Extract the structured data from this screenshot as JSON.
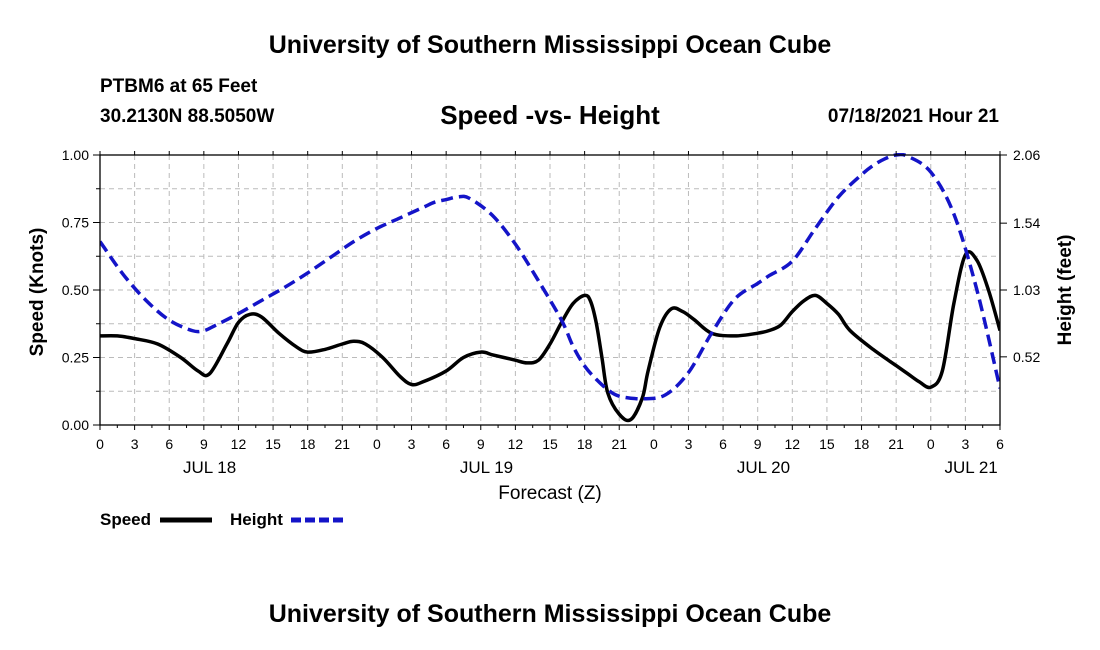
{
  "header": {
    "title": "University of Southern Mississippi Ocean Cube",
    "station": "PTBM6 at 65 Feet",
    "coords": "30.2130N  88.5050W",
    "chart_title": "Speed -vs- Height",
    "timestamp": "07/18/2021 Hour 21"
  },
  "footer": {
    "title": "University of Southern Mississippi Ocean Cube"
  },
  "colors": {
    "speed": "#000000",
    "height": "#1414c8",
    "grid": "#bbbbbb"
  },
  "chart_data": {
    "type": "line",
    "title": "Speed -vs- Height",
    "xlabel": "Forecast (Z)",
    "ylabel": "Speed (Knots)",
    "y2label": "Height (feet)",
    "xlim": [
      0,
      78
    ],
    "ylim": [
      0,
      1.0
    ],
    "y2lim": [
      0.0,
      2.06
    ],
    "xticks": [
      0,
      3,
      6,
      9,
      12,
      15,
      18,
      21,
      24,
      27,
      30,
      33,
      36,
      39,
      42,
      45,
      48,
      51,
      54,
      57,
      60,
      63,
      66,
      69,
      72,
      75,
      78
    ],
    "xtick_labels": [
      "0",
      "3",
      "6",
      "9",
      "12",
      "15",
      "18",
      "21",
      "0",
      "3",
      "6",
      "9",
      "12",
      "15",
      "18",
      "21",
      "0",
      "3",
      "6",
      "9",
      "12",
      "15",
      "18",
      "21",
      "0",
      "3",
      "6"
    ],
    "day_labels": [
      {
        "x": 9.5,
        "label": "JUL 18"
      },
      {
        "x": 33.5,
        "label": "JUL 19"
      },
      {
        "x": 57.5,
        "label": "JUL 20"
      },
      {
        "x": 75.5,
        "label": "JUL 21"
      }
    ],
    "yticks": [
      {
        "value": 0.0,
        "label": "0.00"
      },
      {
        "value": 0.25,
        "label": "0.25"
      },
      {
        "value": 0.5,
        "label": "0.50"
      },
      {
        "value": 0.75,
        "label": "0.75"
      },
      {
        "value": 1.0,
        "label": "1.00"
      }
    ],
    "y2ticks": [
      {
        "value": 0.52,
        "label": "0.52"
      },
      {
        "value": 1.03,
        "label": "1.03"
      },
      {
        "value": 1.54,
        "label": "1.54"
      },
      {
        "value": 2.06,
        "label": "2.06"
      }
    ],
    "grid": true,
    "legend": {
      "position": "bottom-left",
      "speed_label": "Speed",
      "height_label": "Height"
    },
    "series": [
      {
        "name": "Speed",
        "axis": "left",
        "style": "solid",
        "x": [
          0,
          1.5,
          3,
          5,
          7,
          8.5,
          9.5,
          11,
          12,
          13,
          14,
          15.5,
          17,
          18,
          19.5,
          21,
          22,
          23,
          24.5,
          26,
          27,
          28,
          30,
          31.5,
          33,
          34,
          35,
          36,
          37,
          38,
          39,
          40,
          41,
          42,
          42.5,
          43,
          43.5,
          44,
          45,
          46,
          47,
          47.5,
          48.5,
          49.5,
          50.5,
          51.5,
          53,
          55,
          57,
          58,
          59,
          60,
          61,
          62,
          63,
          64,
          65,
          67,
          69,
          70,
          71,
          72,
          73,
          74,
          75,
          76,
          77,
          78
        ],
        "values": [
          0.33,
          0.33,
          0.32,
          0.3,
          0.25,
          0.2,
          0.19,
          0.3,
          0.38,
          0.41,
          0.4,
          0.34,
          0.29,
          0.27,
          0.28,
          0.3,
          0.31,
          0.3,
          0.25,
          0.18,
          0.15,
          0.16,
          0.2,
          0.25,
          0.27,
          0.26,
          0.25,
          0.24,
          0.23,
          0.24,
          0.3,
          0.38,
          0.45,
          0.48,
          0.46,
          0.38,
          0.25,
          0.12,
          0.04,
          0.02,
          0.1,
          0.2,
          0.36,
          0.43,
          0.42,
          0.39,
          0.34,
          0.33,
          0.34,
          0.35,
          0.37,
          0.42,
          0.46,
          0.48,
          0.45,
          0.41,
          0.35,
          0.28,
          0.22,
          0.19,
          0.16,
          0.14,
          0.2,
          0.45,
          0.63,
          0.61,
          0.5,
          0.35
        ]
      },
      {
        "name": "Height",
        "axis": "right",
        "style": "dashed",
        "x": [
          0,
          2,
          4,
          6,
          8,
          9,
          10,
          12,
          14,
          16,
          18,
          20,
          22,
          24,
          26,
          28,
          29,
          30,
          31,
          32,
          34,
          36,
          38,
          40,
          41,
          42,
          43,
          44,
          45,
          47,
          49,
          51,
          53,
          55,
          57,
          58,
          60,
          62,
          64,
          66,
          67,
          68,
          69,
          70,
          72,
          74,
          76,
          78
        ],
        "values": [
          1.4,
          1.15,
          0.95,
          0.8,
          0.72,
          0.72,
          0.76,
          0.85,
          0.95,
          1.05,
          1.16,
          1.28,
          1.4,
          1.5,
          1.58,
          1.66,
          1.7,
          1.72,
          1.74,
          1.73,
          1.6,
          1.38,
          1.1,
          0.8,
          0.6,
          0.45,
          0.35,
          0.27,
          0.22,
          0.2,
          0.23,
          0.4,
          0.7,
          0.96,
          1.08,
          1.14,
          1.25,
          1.5,
          1.74,
          1.91,
          1.98,
          2.03,
          2.06,
          2.05,
          1.93,
          1.61,
          1.03,
          0.28
        ]
      }
    ]
  }
}
